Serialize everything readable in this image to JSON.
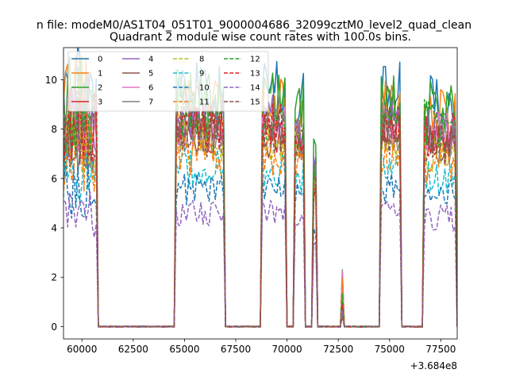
{
  "suptitle": "n file: modeM0/AS1T04_051T01_9000004686_32099cztM0_level2_quad_clean",
  "chart_data": {
    "type": "line",
    "title": "Quadrant 2 module wise count rates with 100.0s bins.",
    "xlabel": "",
    "ylabel": "",
    "x_offset_label": "+3.684e8",
    "xlim": [
      59100,
      78300
    ],
    "ylim": [
      -0.5,
      11.3
    ],
    "xticks": [
      60000,
      62500,
      65000,
      67500,
      70000,
      72500,
      75000,
      77500
    ],
    "xtick_labels": [
      "60000",
      "62500",
      "65000",
      "67500",
      "70000",
      "72500",
      "75000",
      "77500"
    ],
    "yticks": [
      0,
      2,
      4,
      6,
      8,
      10
    ],
    "ytick_labels": [
      "0",
      "2",
      "4",
      "6",
      "8",
      "10"
    ],
    "legend_position": "top-left",
    "segments": [
      {
        "start": 59000,
        "end": 60700,
        "peak": 1.0,
        "noisy": true
      },
      {
        "start": 64600,
        "end": 66900,
        "peak": 1.0
      },
      {
        "start": 68800,
        "end": 69900,
        "peak": 1.0
      },
      {
        "start": 70400,
        "end": 70800,
        "peak": 0.95
      },
      {
        "start": 71300,
        "end": 71400,
        "peak": 0.75
      },
      {
        "start": 72700,
        "end": 72700,
        "peak": 0.17
      },
      {
        "start": 74600,
        "end": 75500,
        "peak": 1.0
      },
      {
        "start": 76700,
        "end": 78200,
        "peak": 0.95
      }
    ],
    "series": [
      {
        "name": "0",
        "color": "#1f77b4",
        "dash": "solid",
        "level": 9.6
      },
      {
        "name": "1",
        "color": "#ff7f0e",
        "dash": "solid",
        "level": 9.0
      },
      {
        "name": "2",
        "color": "#2ca02c",
        "dash": "solid",
        "level": 9.3
      },
      {
        "name": "3",
        "color": "#d62728",
        "dash": "solid",
        "level": 8.0
      },
      {
        "name": "4",
        "color": "#9467bd",
        "dash": "solid",
        "level": 8.4
      },
      {
        "name": "5",
        "color": "#8c564b",
        "dash": "solid",
        "level": 7.7
      },
      {
        "name": "6",
        "color": "#e377c2",
        "dash": "solid",
        "level": 8.2
      },
      {
        "name": "7",
        "color": "#7f7f7f",
        "dash": "solid",
        "level": 7.9
      },
      {
        "name": "8",
        "color": "#bcbd22",
        "dash": "dashed",
        "level": 7.5
      },
      {
        "name": "9",
        "color": "#17becf",
        "dash": "dashed",
        "level": 6.4
      },
      {
        "name": "10",
        "color": "#1f77b4",
        "dash": "dashed",
        "level": 5.6
      },
      {
        "name": "11",
        "color": "#ff7f0e",
        "dash": "dashed",
        "level": 6.9
      },
      {
        "name": "12",
        "color": "#2ca02c",
        "dash": "dashed",
        "level": 8.6
      },
      {
        "name": "13",
        "color": "#d62728",
        "dash": "dashed",
        "level": 8.1
      },
      {
        "name": "14",
        "color": "#9467bd",
        "dash": "dashed",
        "level": 4.6
      },
      {
        "name": "15",
        "color": "#8c564b",
        "dash": "dashed",
        "level": 7.8
      }
    ]
  }
}
